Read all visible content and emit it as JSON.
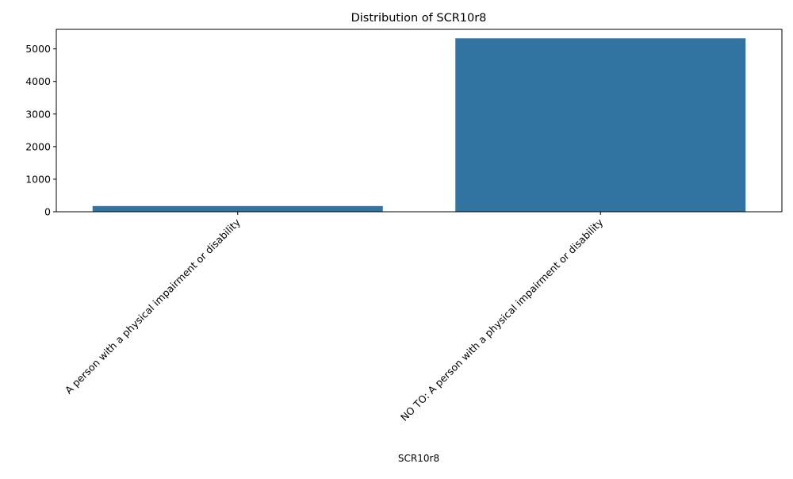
{
  "chart_data": {
    "type": "bar",
    "title": "Distribution of SCR10r8",
    "xlabel": "SCR10r8",
    "ylabel": "",
    "categories": [
      "A person with a physical impairment or disability",
      "NO TO: A person with a physical impairment or disability"
    ],
    "values": [
      175,
      5325
    ],
    "ylim": [
      0,
      5600
    ],
    "yticks": [
      0,
      1000,
      2000,
      3000,
      4000,
      5000
    ],
    "grid": false,
    "legend": "none",
    "bar_color": "#3274a1"
  }
}
